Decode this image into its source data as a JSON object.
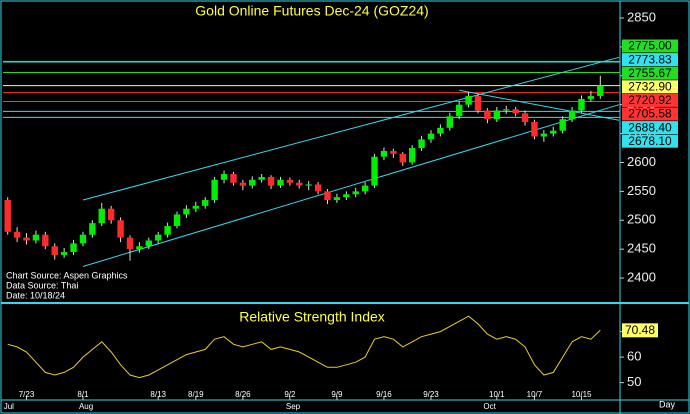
{
  "chart_data": {
    "type": "candlestick",
    "title": "Gold Online Futures Dec-24 (GOZ24)",
    "categories": [
      null,
      null,
      "7/23",
      null,
      null,
      null,
      null,
      null,
      "8/1",
      null,
      null,
      null,
      null,
      null,
      null,
      null,
      "8/13",
      null,
      null,
      null,
      "8/19",
      null,
      null,
      null,
      null,
      "8/26",
      null,
      null,
      null,
      null,
      "9/2",
      null,
      null,
      null,
      null,
      "9/9",
      null,
      null,
      null,
      null,
      "9/16",
      null,
      null,
      null,
      null,
      "9/23",
      null,
      null,
      null,
      null,
      null,
      null,
      "10/1",
      null,
      null,
      null,
      "10/7",
      null,
      null,
      null,
      null,
      "10/15",
      null,
      null,
      null
    ],
    "months": [
      "Jul",
      null,
      null,
      null,
      null,
      null,
      null,
      null,
      "Aug",
      null,
      null,
      null,
      null,
      null,
      null,
      null,
      null,
      null,
      null,
      null,
      null,
      null,
      null,
      null,
      null,
      null,
      null,
      null,
      null,
      null,
      "Sep",
      null,
      null,
      null,
      null,
      null,
      null,
      null,
      null,
      null,
      null,
      null,
      null,
      null,
      null,
      null,
      null,
      null,
      null,
      null,
      null,
      "Oct",
      null,
      null,
      null,
      null,
      null,
      null,
      null,
      null,
      null,
      null,
      null,
      null
    ],
    "x_label": "Day",
    "open": [
      2535,
      2480,
      2470,
      2465,
      2475,
      2455,
      2440,
      2445,
      2460,
      2475,
      2495,
      2520,
      2500,
      2470,
      2450,
      2455,
      2465,
      2475,
      2490,
      2510,
      2520,
      2525,
      2535,
      2570,
      2580,
      2565,
      2560,
      2570,
      2575,
      2560,
      2570,
      2565,
      2560,
      2562,
      2550,
      2535,
      2540,
      2545,
      2550,
      2560,
      2610,
      2620,
      2615,
      2600,
      2625,
      2640,
      2650,
      2660,
      2680,
      2700,
      2715,
      2690,
      2675,
      2690,
      2692,
      2685,
      2670,
      2645,
      2650,
      2655,
      2675,
      2690,
      2710,
      2715
    ],
    "high": [
      2540,
      2488,
      2478,
      2482,
      2480,
      2460,
      2452,
      2466,
      2480,
      2500,
      2530,
      2525,
      2505,
      2474,
      2462,
      2470,
      2480,
      2496,
      2515,
      2526,
      2532,
      2540,
      2575,
      2586,
      2584,
      2570,
      2576,
      2580,
      2578,
      2575,
      2574,
      2570,
      2568,
      2566,
      2554,
      2546,
      2550,
      2556,
      2566,
      2615,
      2626,
      2624,
      2618,
      2630,
      2646,
      2656,
      2666,
      2686,
      2706,
      2722,
      2718,
      2694,
      2696,
      2698,
      2696,
      2690,
      2674,
      2656,
      2662,
      2680,
      2696,
      2716,
      2724,
      2750
    ],
    "low": [
      2475,
      2462,
      2458,
      2460,
      2450,
      2432,
      2435,
      2440,
      2455,
      2470,
      2490,
      2494,
      2462,
      2430,
      2444,
      2450,
      2460,
      2470,
      2486,
      2504,
      2514,
      2520,
      2530,
      2564,
      2560,
      2552,
      2555,
      2565,
      2554,
      2556,
      2560,
      2555,
      2552,
      2545,
      2528,
      2530,
      2535,
      2540,
      2545,
      2556,
      2604,
      2608,
      2594,
      2596,
      2620,
      2634,
      2645,
      2655,
      2675,
      2695,
      2685,
      2668,
      2670,
      2684,
      2680,
      2664,
      2640,
      2636,
      2645,
      2650,
      2670,
      2686,
      2705,
      2710
    ],
    "close": [
      2480,
      2470,
      2465,
      2475,
      2455,
      2440,
      2445,
      2460,
      2475,
      2495,
      2520,
      2500,
      2470,
      2450,
      2455,
      2465,
      2475,
      2490,
      2510,
      2520,
      2525,
      2535,
      2570,
      2580,
      2565,
      2560,
      2570,
      2575,
      2560,
      2570,
      2565,
      2560,
      2562,
      2550,
      2535,
      2540,
      2545,
      2550,
      2560,
      2610,
      2620,
      2615,
      2600,
      2625,
      2640,
      2650,
      2660,
      2680,
      2700,
      2715,
      2690,
      2675,
      2690,
      2692,
      2685,
      2670,
      2645,
      2650,
      2655,
      2675,
      2690,
      2710,
      2715,
      2733
    ],
    "up_color": "#00ee00",
    "down_color": "#ff2a2a",
    "ylim": [
      2362,
      2876
    ],
    "yticks": [
      2400,
      2450,
      2500,
      2550,
      2600,
      2650,
      2700,
      2750,
      2800,
      2850
    ],
    "levels": {
      "values": [
        2775,
        2773.83,
        2755.67,
        2732.9,
        2720.92,
        2705.58,
        2688.4,
        2678.1
      ],
      "value_labels": [
        "2775.00",
        "2773.83",
        "2755.67",
        "2732.90",
        "2720.92",
        "2705.58",
        "2688.40",
        "2678.10"
      ],
      "colors": [
        "#22dd22",
        "#33e0ee",
        "#22dd22",
        "#ffff66",
        "#ff3333",
        "#ff3333",
        "#33e0ee",
        "#33e0ee"
      ]
    },
    "trendlines": {
      "color": "#33d8ee",
      "lines": [
        [
          [
            8,
            2535
          ],
          [
            65,
            2782
          ]
        ],
        [
          [
            8,
            2420
          ],
          [
            65,
            2700
          ]
        ],
        [
          [
            48,
            2725
          ],
          [
            65,
            2673
          ]
        ]
      ]
    },
    "notes": [
      "Chart Source: Aspen Graphics",
      "Data Source: Thai",
      "Date: 10/18/24"
    ],
    "rsi": {
      "title": "Relative Strength Index",
      "color": "#e8d020",
      "values": [
        65,
        64,
        62,
        58,
        54,
        53,
        54,
        56,
        60,
        63,
        66,
        62,
        57,
        53,
        52,
        53,
        55,
        57,
        59,
        61,
        62,
        63,
        67,
        68,
        65,
        64,
        65,
        66,
        63,
        64,
        63,
        62,
        60,
        58,
        56,
        56,
        57,
        58,
        60,
        67,
        68,
        67,
        64,
        66,
        68,
        69,
        70,
        72,
        74,
        76,
        73,
        69,
        67,
        68,
        67,
        64,
        57,
        53,
        54,
        60,
        66,
        68,
        67,
        70.48
      ],
      "ylim": [
        44,
        80
      ],
      "yticks": [
        50,
        60,
        70
      ]
    }
  }
}
